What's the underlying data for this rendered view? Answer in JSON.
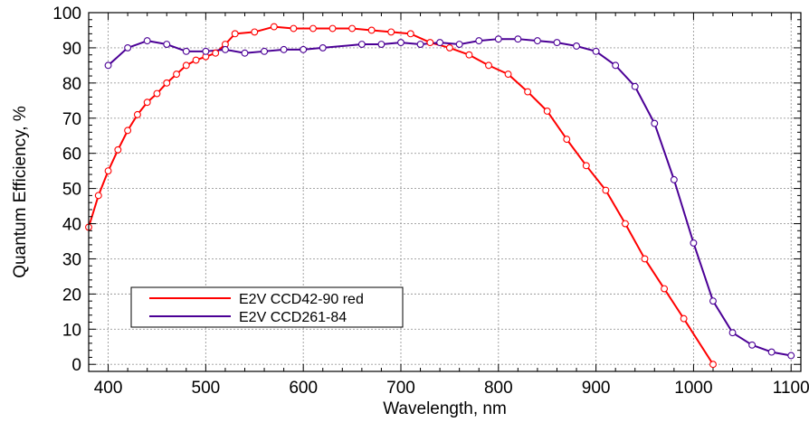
{
  "chart_data": {
    "type": "line",
    "xlabel": "Wavelength, nm",
    "ylabel": "Quantum Efficiency, %",
    "xlim": [
      380,
      1110
    ],
    "ylim": [
      -2,
      100
    ],
    "x_ticks": [
      400,
      500,
      600,
      700,
      800,
      900,
      1000,
      1100
    ],
    "y_ticks": [
      0,
      10,
      20,
      30,
      40,
      50,
      60,
      70,
      80,
      90,
      100
    ],
    "grid": true,
    "legend_position": "bottom-left",
    "series": [
      {
        "name": "E2V CCD42-90 red",
        "color": "#ff0000",
        "marker": "open-circle",
        "points": [
          [
            380,
            39
          ],
          [
            390,
            48
          ],
          [
            400,
            55
          ],
          [
            410,
            61
          ],
          [
            420,
            66.5
          ],
          [
            430,
            71
          ],
          [
            440,
            74.5
          ],
          [
            450,
            77
          ],
          [
            460,
            80
          ],
          [
            470,
            82.5
          ],
          [
            480,
            85
          ],
          [
            490,
            86.5
          ],
          [
            500,
            87.5
          ],
          [
            510,
            88.5
          ],
          [
            520,
            91
          ],
          [
            530,
            94
          ],
          [
            550,
            94.5
          ],
          [
            570,
            96
          ],
          [
            590,
            95.5
          ],
          [
            610,
            95.5
          ],
          [
            630,
            95.5
          ],
          [
            650,
            95.5
          ],
          [
            670,
            95
          ],
          [
            690,
            94.5
          ],
          [
            710,
            94
          ],
          [
            730,
            91.5
          ],
          [
            750,
            90
          ],
          [
            770,
            88
          ],
          [
            790,
            85
          ],
          [
            810,
            82.5
          ],
          [
            830,
            77.5
          ],
          [
            850,
            72
          ],
          [
            870,
            64
          ],
          [
            890,
            56.5
          ],
          [
            910,
            49.5
          ],
          [
            930,
            40
          ],
          [
            950,
            30
          ],
          [
            970,
            21.5
          ],
          [
            990,
            13
          ],
          [
            1020,
            0
          ]
        ]
      },
      {
        "name": "E2V CCD261-84",
        "color": "#4b0096",
        "marker": "open-circle",
        "points": [
          [
            400,
            85
          ],
          [
            420,
            90
          ],
          [
            440,
            92
          ],
          [
            460,
            91
          ],
          [
            480,
            89
          ],
          [
            500,
            89
          ],
          [
            520,
            89.5
          ],
          [
            540,
            88.5
          ],
          [
            560,
            89
          ],
          [
            580,
            89.5
          ],
          [
            600,
            89.5
          ],
          [
            620,
            90
          ],
          [
            660,
            91
          ],
          [
            680,
            91
          ],
          [
            700,
            91.5
          ],
          [
            720,
            91
          ],
          [
            740,
            91.5
          ],
          [
            760,
            91
          ],
          [
            780,
            92
          ],
          [
            800,
            92.5
          ],
          [
            820,
            92.5
          ],
          [
            840,
            92
          ],
          [
            860,
            91.5
          ],
          [
            880,
            90.5
          ],
          [
            900,
            89
          ],
          [
            920,
            85
          ],
          [
            940,
            79
          ],
          [
            960,
            68.5
          ],
          [
            980,
            52.5
          ],
          [
            1000,
            34.5
          ],
          [
            1020,
            18
          ],
          [
            1040,
            9
          ],
          [
            1060,
            5.5
          ],
          [
            1080,
            3.5
          ],
          [
            1100,
            2.5
          ]
        ]
      }
    ]
  }
}
